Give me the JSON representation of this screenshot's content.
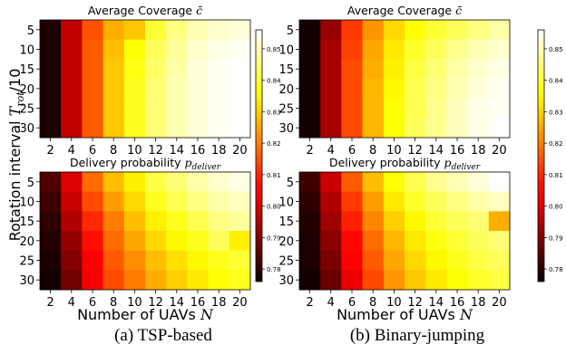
{
  "figure": {
    "captions": {
      "a": "(a) TSP-based",
      "b": "(b) Binary-jumping"
    },
    "common_ylabel": {
      "prefix": "Rotation interval ",
      "math": "T",
      "sub": "rot",
      "suffix": "/10"
    },
    "common_xlabel": {
      "prefix": "Number of UAVs ",
      "math": "N"
    }
  },
  "colorbars": [
    {
      "ticks": [
        "0.85",
        "0.84",
        "0.83",
        "0.82",
        "0.81",
        "0.80",
        "0.79",
        "0.78"
      ]
    },
    {
      "ticks": [
        "0.85",
        "0.84",
        "0.83",
        "0.82",
        "0.81",
        "0.80",
        "0.79",
        "0.78"
      ]
    }
  ],
  "chart_data": [
    {
      "type": "heatmap",
      "panel": "a",
      "title": {
        "prefix": "Average Coverage ",
        "math": "c̄",
        "sub": ""
      },
      "x": [
        "2",
        "4",
        "6",
        "8",
        "10",
        "12",
        "14",
        "16",
        "18",
        "20"
      ],
      "y": [
        "5",
        "10",
        "15",
        "20",
        "25",
        "30"
      ],
      "colormap": "hot",
      "vmin": 0.776,
      "vmax": 0.856,
      "values": [
        [
          0.778,
          0.797,
          0.815,
          0.826,
          0.829,
          0.84,
          0.846,
          0.85,
          0.852,
          0.853
        ],
        [
          0.778,
          0.797,
          0.816,
          0.828,
          0.836,
          0.843,
          0.848,
          0.852,
          0.854,
          0.855
        ],
        [
          0.778,
          0.797,
          0.816,
          0.829,
          0.837,
          0.844,
          0.849,
          0.853,
          0.855,
          0.856
        ],
        [
          0.778,
          0.797,
          0.816,
          0.829,
          0.838,
          0.845,
          0.85,
          0.853,
          0.855,
          0.856
        ],
        [
          0.778,
          0.797,
          0.816,
          0.829,
          0.838,
          0.845,
          0.85,
          0.853,
          0.855,
          0.856
        ],
        [
          0.778,
          0.797,
          0.816,
          0.829,
          0.838,
          0.845,
          0.85,
          0.853,
          0.855,
          0.856
        ]
      ]
    },
    {
      "type": "heatmap",
      "panel": "a",
      "title": {
        "prefix": "Delivery probability ",
        "math": "p",
        "sub": "deliver"
      },
      "x": [
        "2",
        "4",
        "6",
        "8",
        "10",
        "12",
        "14",
        "16",
        "18",
        "20"
      ],
      "y": [
        "5",
        "10",
        "15",
        "20",
        "25",
        "30"
      ],
      "colormap": "hot",
      "vmin": 0.776,
      "vmax": 0.856,
      "values": [
        [
          0.784,
          0.8,
          0.818,
          0.828,
          0.834,
          0.841,
          0.845,
          0.849,
          0.852,
          0.854
        ],
        [
          0.782,
          0.798,
          0.814,
          0.824,
          0.831,
          0.838,
          0.842,
          0.846,
          0.849,
          0.851
        ],
        [
          0.78,
          0.795,
          0.81,
          0.82,
          0.828,
          0.834,
          0.838,
          0.842,
          0.846,
          0.848
        ],
        [
          0.779,
          0.792,
          0.807,
          0.818,
          0.825,
          0.831,
          0.835,
          0.838,
          0.843,
          0.834
        ],
        [
          0.778,
          0.79,
          0.805,
          0.816,
          0.822,
          0.828,
          0.832,
          0.835,
          0.838,
          0.84
        ],
        [
          0.777,
          0.788,
          0.803,
          0.814,
          0.82,
          0.826,
          0.83,
          0.833,
          0.836,
          0.838
        ]
      ]
    },
    {
      "type": "heatmap",
      "panel": "b",
      "title": {
        "prefix": "Average Coverage ",
        "math": "c̄",
        "sub": ""
      },
      "x": [
        "2",
        "4",
        "6",
        "8",
        "10",
        "12",
        "14",
        "16",
        "18",
        "20"
      ],
      "y": [
        "5",
        "10",
        "15",
        "20",
        "25",
        "30"
      ],
      "colormap": "hot",
      "vmin": 0.776,
      "vmax": 0.856,
      "values": [
        [
          0.777,
          0.792,
          0.812,
          0.823,
          0.831,
          0.836,
          0.84,
          0.843,
          0.846,
          0.849
        ],
        [
          0.777,
          0.794,
          0.813,
          0.825,
          0.833,
          0.839,
          0.843,
          0.847,
          0.85,
          0.852
        ],
        [
          0.777,
          0.794,
          0.814,
          0.826,
          0.834,
          0.841,
          0.845,
          0.849,
          0.852,
          0.854
        ],
        [
          0.777,
          0.794,
          0.814,
          0.827,
          0.835,
          0.842,
          0.846,
          0.85,
          0.853,
          0.855
        ],
        [
          0.777,
          0.794,
          0.814,
          0.827,
          0.836,
          0.842,
          0.847,
          0.851,
          0.854,
          0.855
        ],
        [
          0.777,
          0.794,
          0.814,
          0.827,
          0.836,
          0.843,
          0.847,
          0.851,
          0.854,
          0.856
        ]
      ]
    },
    {
      "type": "heatmap",
      "panel": "b",
      "title": {
        "prefix": "Delivery probability ",
        "math": "p",
        "sub": "deliver"
      },
      "x": [
        "2",
        "4",
        "6",
        "8",
        "10",
        "12",
        "14",
        "16",
        "18",
        "20"
      ],
      "y": [
        "5",
        "10",
        "15",
        "20",
        "25",
        "30"
      ],
      "colormap": "hot",
      "vmin": 0.776,
      "vmax": 0.856,
      "values": [
        [
          0.782,
          0.798,
          0.816,
          0.828,
          0.836,
          0.842,
          0.847,
          0.85,
          0.853,
          0.856
        ],
        [
          0.78,
          0.795,
          0.812,
          0.824,
          0.833,
          0.839,
          0.843,
          0.846,
          0.849,
          0.851
        ],
        [
          0.779,
          0.793,
          0.809,
          0.821,
          0.83,
          0.835,
          0.84,
          0.843,
          0.845,
          0.826
        ],
        [
          0.778,
          0.791,
          0.806,
          0.818,
          0.827,
          0.833,
          0.837,
          0.84,
          0.843,
          0.845
        ],
        [
          0.778,
          0.789,
          0.804,
          0.816,
          0.825,
          0.831,
          0.835,
          0.838,
          0.841,
          0.843
        ],
        [
          0.777,
          0.787,
          0.802,
          0.814,
          0.823,
          0.829,
          0.833,
          0.836,
          0.839,
          0.841
        ]
      ]
    }
  ]
}
